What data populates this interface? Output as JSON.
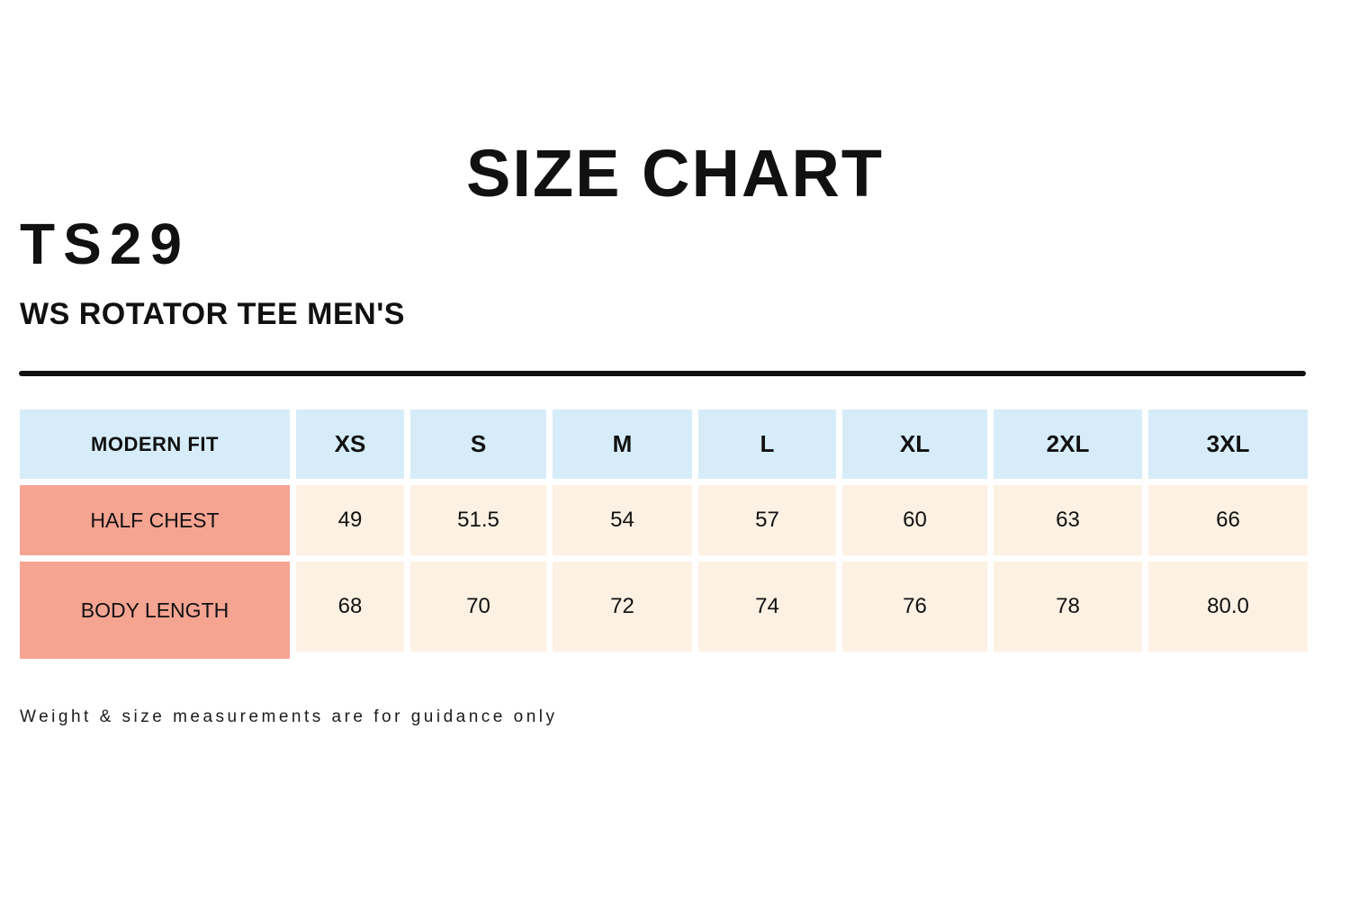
{
  "page": {
    "title": "SIZE CHART",
    "product_code": "TS29",
    "product_name": "WS ROTATOR TEE MEN'S",
    "footnote": "Weight & size measurements are for guidance only"
  },
  "colors": {
    "size_header_bg": "#d6ecf9",
    "row_label_bg": "#f6a492",
    "value_cell_bg": "#fdf1e3",
    "divider": "#111111"
  },
  "chart_data": {
    "type": "table",
    "title": "SIZE CHART",
    "columns": [
      "MODERN FIT",
      "XS",
      "S",
      "M",
      "L",
      "XL",
      "2XL",
      "3XL"
    ],
    "rows": [
      {
        "label": "HALF CHEST",
        "values": [
          "49",
          "51.5",
          "54",
          "57",
          "60",
          "63",
          "66"
        ]
      },
      {
        "label": "BODY LENGTH",
        "values": [
          "68",
          "70",
          "72",
          "74",
          "76",
          "78",
          "80.0"
        ]
      }
    ],
    "footnote": "Weight & size measurements are for guidance only"
  }
}
